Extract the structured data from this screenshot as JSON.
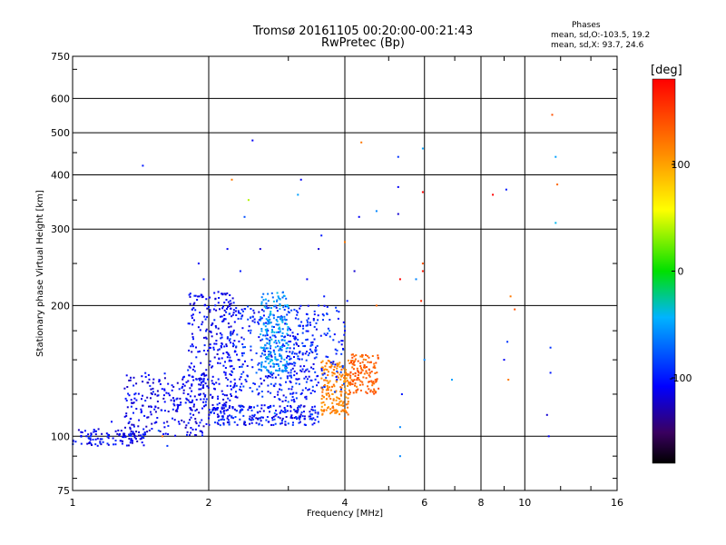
{
  "title_line1": "Tromsø 20161105 00:20:00-00:21:43",
  "title_line2": "RwPretec (Bp)",
  "phases_box": {
    "title": "Phases",
    "o_stats": "mean, sd,O:-103.5, 19.2",
    "x_stats": "mean, sd,X:  93.7, 24.6"
  },
  "colorbar": {
    "unit": "[deg]",
    "ticks": [
      "100",
      "0",
      "-100"
    ],
    "tick_values": [
      100,
      0,
      -100
    ],
    "range": [
      -180,
      180
    ]
  },
  "chart_data": {
    "type": "scatter",
    "xlabel": "Frequency [MHz]",
    "ylabel": "Stationary phase Virtual Height [km]",
    "x_scale": "log",
    "y_scale": "log",
    "xlim": [
      1,
      16
    ],
    "ylim": [
      75,
      750
    ],
    "x_ticks": [
      "1",
      "2",
      "4",
      "6",
      "8",
      "10",
      "16"
    ],
    "x_tick_values": [
      1,
      2,
      4,
      6,
      8,
      10,
      16
    ],
    "y_ticks": [
      "750",
      "600",
      "500",
      "400",
      "300",
      "200",
      "100",
      "75"
    ],
    "y_tick_values": [
      750,
      600,
      500,
      400,
      300,
      200,
      100,
      75
    ],
    "grid": true,
    "colorscale": "rainbow phase",
    "points": [
      [
        1.43,
        420,
        -100
      ],
      [
        2.5,
        480,
        -110
      ],
      [
        2.25,
        390,
        120
      ],
      [
        2.45,
        350,
        40
      ],
      [
        2.4,
        320,
        -80
      ],
      [
        2.6,
        270,
        -120
      ],
      [
        3.2,
        390,
        -110
      ],
      [
        3.15,
        360,
        -50
      ],
      [
        3.55,
        290,
        -100
      ],
      [
        3.5,
        270,
        -120
      ],
      [
        4.0,
        280,
        120
      ],
      [
        4.35,
        475,
        120
      ],
      [
        4.3,
        320,
        -110
      ],
      [
        4.7,
        330,
        -60
      ],
      [
        5.25,
        440,
        -90
      ],
      [
        5.25,
        375,
        -110
      ],
      [
        5.25,
        325,
        -120
      ],
      [
        5.95,
        460,
        -50
      ],
      [
        5.95,
        365,
        180
      ],
      [
        5.95,
        250,
        140
      ],
      [
        5.95,
        240,
        170
      ],
      [
        5.9,
        205,
        160
      ],
      [
        5.75,
        230,
        -60
      ],
      [
        5.3,
        230,
        180
      ],
      [
        4.7,
        200,
        130
      ],
      [
        8.5,
        360,
        180
      ],
      [
        9.1,
        370,
        -100
      ],
      [
        9.3,
        210,
        120
      ],
      [
        9.5,
        196,
        140
      ],
      [
        9.15,
        165,
        -90
      ],
      [
        9.2,
        135,
        120
      ],
      [
        9.0,
        150,
        -110
      ],
      [
        11.5,
        550,
        140
      ],
      [
        11.7,
        440,
        -50
      ],
      [
        11.8,
        380,
        130
      ],
      [
        11.7,
        310,
        -40
      ],
      [
        11.4,
        160,
        -90
      ],
      [
        11.4,
        140,
        -100
      ],
      [
        11.2,
        112,
        -120
      ],
      [
        11.3,
        100,
        -110
      ],
      [
        6.9,
        135,
        -50
      ],
      [
        6.0,
        150,
        -60
      ],
      [
        5.35,
        125,
        -100
      ],
      [
        5.3,
        105,
        -60
      ],
      [
        5.3,
        90,
        -60
      ],
      [
        4.0,
        175,
        -110
      ],
      [
        4.05,
        205,
        -100
      ],
      [
        4.2,
        240,
        -120
      ],
      [
        1.1,
        101,
        -110
      ],
      [
        1.22,
        108,
        -105
      ],
      [
        1.35,
        117,
        -100
      ],
      [
        1.58,
        100,
        130
      ],
      [
        1.62,
        95,
        -90
      ],
      [
        1.55,
        103,
        -70
      ],
      [
        1.8,
        142,
        -90
      ],
      [
        1.9,
        250,
        -110
      ],
      [
        1.95,
        230,
        -100
      ],
      [
        2.1,
        215,
        -115
      ],
      [
        2.05,
        160,
        -105
      ],
      [
        2.3,
        190,
        -100
      ],
      [
        2.45,
        175,
        -95
      ],
      [
        2.7,
        185,
        -60
      ],
      [
        2.85,
        210,
        -50
      ],
      [
        2.75,
        150,
        -45
      ],
      [
        2.9,
        170,
        -80
      ],
      [
        3.0,
        140,
        -100
      ],
      [
        3.3,
        185,
        -90
      ],
      [
        3.45,
        160,
        -110
      ],
      [
        3.5,
        200,
        -100
      ],
      [
        3.6,
        210,
        -100
      ],
      [
        3.7,
        175,
        -60
      ],
      [
        3.85,
        145,
        120
      ],
      [
        3.75,
        130,
        130
      ],
      [
        3.9,
        120,
        110
      ],
      [
        3.6,
        115,
        120
      ],
      [
        4.1,
        125,
        120
      ],
      [
        4.3,
        135,
        130
      ],
      [
        4.55,
        140,
        140
      ],
      [
        4.65,
        145,
        130
      ],
      [
        4.45,
        150,
        120
      ],
      [
        4.25,
        130,
        110
      ],
      [
        4.0,
        110,
        130
      ],
      [
        3.55,
        115,
        110
      ],
      [
        3.4,
        130,
        -80
      ],
      [
        3.2,
        125,
        -90
      ],
      [
        3.0,
        120,
        -70
      ],
      [
        2.8,
        113,
        -60
      ],
      [
        2.6,
        110,
        -80
      ],
      [
        2.4,
        108,
        -110
      ],
      [
        2.2,
        110,
        -115
      ],
      [
        2.0,
        110,
        -110
      ],
      [
        1.85,
        112,
        -120
      ],
      [
        1.7,
        115,
        -110
      ],
      [
        1.6,
        120,
        -105
      ],
      [
        1.5,
        125,
        -110
      ],
      [
        2.15,
        125,
        -100
      ],
      [
        2.35,
        130,
        -90
      ],
      [
        2.55,
        140,
        -70
      ],
      [
        2.65,
        160,
        -50
      ],
      [
        2.25,
        145,
        -110
      ],
      [
        1.95,
        135,
        -100
      ],
      [
        1.75,
        130,
        -115
      ],
      [
        3.1,
        155,
        -100
      ],
      [
        3.25,
        145,
        -110
      ],
      [
        2.95,
        200,
        -40
      ],
      [
        2.35,
        240,
        -100
      ],
      [
        2.2,
        270,
        -110
      ],
      [
        3.3,
        230,
        -110
      ]
    ],
    "clusters": [
      {
        "x": [
          1.0,
          1.45
        ],
        "y": [
          95,
          104
        ],
        "phase": [
          -130,
          -90
        ],
        "n": 110
      },
      {
        "x": [
          1.3,
          2.0
        ],
        "y": [
          100,
          140
        ],
        "phase": [
          -130,
          -95
        ],
        "n": 230
      },
      {
        "x": [
          2.0,
          3.5
        ],
        "y": [
          106,
          118
        ],
        "phase": [
          -125,
          -80
        ],
        "n": 230
      },
      {
        "x": [
          1.8,
          2.3
        ],
        "y": [
          115,
          215
        ],
        "phase": [
          -125,
          -95
        ],
        "n": 280
      },
      {
        "x": [
          2.2,
          3.5
        ],
        "y": [
          120,
          200
        ],
        "phase": [
          -120,
          -80
        ],
        "n": 330
      },
      {
        "x": [
          2.6,
          3.0
        ],
        "y": [
          140,
          215
        ],
        "phase": [
          -75,
          -35
        ],
        "n": 200
      },
      {
        "x": [
          3.55,
          4.1
        ],
        "y": [
          112,
          150
        ],
        "phase": [
          100,
          130
        ],
        "n": 180
      },
      {
        "x": [
          4.1,
          4.75
        ],
        "y": [
          125,
          155
        ],
        "phase": [
          120,
          145
        ],
        "n": 130
      },
      {
        "x": [
          3.0,
          4.0
        ],
        "y": [
          125,
          200
        ],
        "phase": [
          -110,
          -80
        ],
        "n": 120
      }
    ]
  }
}
